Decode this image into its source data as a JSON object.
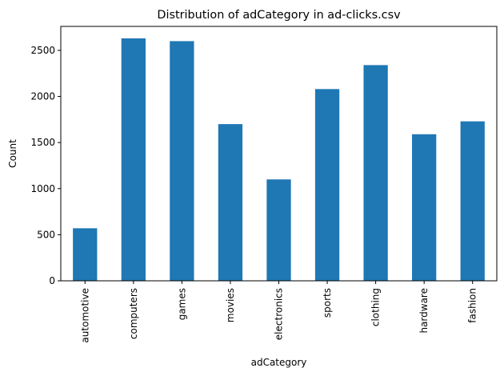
{
  "chart_data": {
    "type": "bar",
    "title": "Distribution of adCategory in ad-clicks.csv",
    "xlabel": "adCategory",
    "ylabel": "Count",
    "categories": [
      "automotive",
      "computers",
      "games",
      "movies",
      "electronics",
      "sports",
      "clothing",
      "hardware",
      "fashion"
    ],
    "values": [
      570,
      2630,
      2600,
      1700,
      1100,
      2080,
      2340,
      1590,
      1730
    ],
    "yticks": [
      0,
      500,
      1000,
      1500,
      2000,
      2500
    ],
    "ylim": [
      0,
      2760
    ],
    "grid": false,
    "bar_color": "#1f77b4"
  }
}
